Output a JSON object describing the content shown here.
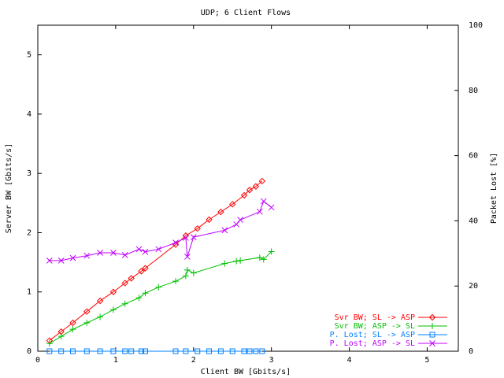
{
  "chart_data": {
    "type": "line",
    "title": "UDP; 6 Client Flows",
    "xlabel": "Client BW [Gbits/s]",
    "ylabel": "Server BW [Gbits/s]",
    "y2label": "Packet Lost [%]",
    "xlim": [
      0,
      5.4
    ],
    "ylim": [
      0,
      5.5
    ],
    "y2lim": [
      0,
      100
    ],
    "x_ticks": [
      "0",
      "1",
      "2",
      "3",
      "4",
      "5"
    ],
    "y_ticks": [
      "0",
      "1",
      "2",
      "3",
      "4",
      "5"
    ],
    "y2_ticks": [
      "0",
      "20",
      "40",
      "60",
      "80",
      "100"
    ],
    "grid": false,
    "legend_position": "bottom-right",
    "series": [
      {
        "name": "Svr BW;  SL -> ASP",
        "axis": "left",
        "color": "#ff0000",
        "marker": "diamond",
        "x": [
          0.15,
          0.3,
          0.45,
          0.63,
          0.8,
          0.97,
          1.12,
          1.2,
          1.33,
          1.38,
          1.77,
          1.9,
          2.05,
          2.2,
          2.35,
          2.5,
          2.65,
          2.72,
          2.8,
          2.88
        ],
        "y": [
          0.18,
          0.33,
          0.48,
          0.67,
          0.85,
          1.0,
          1.15,
          1.23,
          1.35,
          1.4,
          1.8,
          1.95,
          2.07,
          2.22,
          2.35,
          2.48,
          2.63,
          2.72,
          2.78,
          2.87
        ]
      },
      {
        "name": "Svr BW;  ASP -> SL",
        "axis": "left",
        "color": "#00c000",
        "marker": "plus",
        "x": [
          0.15,
          0.3,
          0.45,
          0.63,
          0.8,
          0.97,
          1.12,
          1.3,
          1.38,
          1.55,
          1.77,
          1.9,
          1.92,
          2.0,
          2.4,
          2.55,
          2.6,
          2.85,
          2.9,
          3.0
        ],
        "y": [
          0.13,
          0.25,
          0.37,
          0.48,
          0.58,
          0.7,
          0.8,
          0.9,
          0.98,
          1.08,
          1.18,
          1.27,
          1.37,
          1.32,
          1.48,
          1.52,
          1.53,
          1.58,
          1.55,
          1.68
        ]
      },
      {
        "name": "P. Lost; SL -> ASP",
        "axis": "right",
        "color": "#0080ff",
        "marker": "square",
        "x": [
          0.15,
          0.3,
          0.45,
          0.63,
          0.8,
          0.97,
          1.12,
          1.2,
          1.33,
          1.38,
          1.77,
          1.9,
          2.05,
          2.2,
          2.35,
          2.5,
          2.65,
          2.72,
          2.8,
          2.88
        ],
        "y": [
          0,
          0,
          0,
          0,
          0,
          0,
          0,
          0,
          0,
          0,
          0,
          0,
          0,
          0,
          0,
          0,
          0,
          0,
          0,
          0
        ]
      },
      {
        "name": "P. Lost; ASP -> SL",
        "axis": "right",
        "color": "#c000ff",
        "marker": "x",
        "x": [
          0.15,
          0.3,
          0.45,
          0.63,
          0.8,
          0.97,
          1.12,
          1.3,
          1.38,
          1.55,
          1.77,
          1.9,
          1.92,
          2.0,
          2.4,
          2.55,
          2.6,
          2.85,
          2.9,
          3.0
        ],
        "y": [
          27.8,
          27.8,
          28.6,
          29.3,
          30.2,
          30.2,
          29.5,
          31.3,
          30.5,
          31.3,
          33.3,
          34.8,
          29.0,
          35.0,
          37.1,
          38.9,
          40.3,
          42.8,
          46.0,
          44.1
        ]
      }
    ]
  }
}
